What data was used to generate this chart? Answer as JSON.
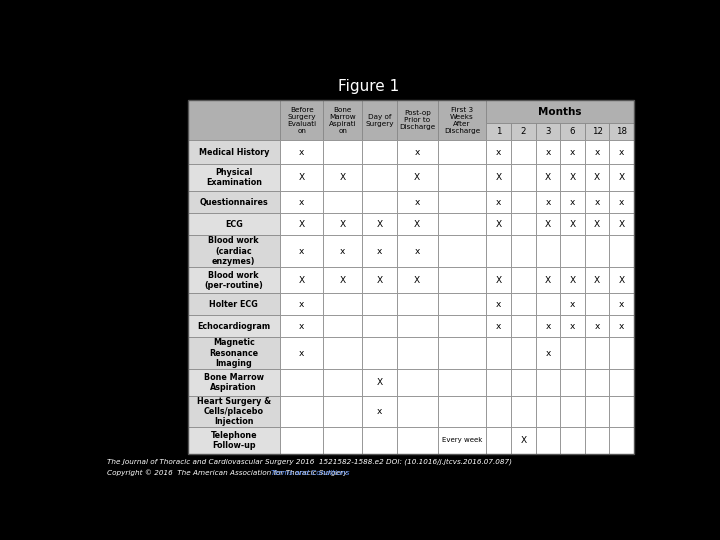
{
  "title": "Figure 1",
  "background_color": "#000000",
  "header_bg": "#b0b0b0",
  "subheader_bg": "#c8c8c8",
  "row_label_bg_even": "#d8d8d8",
  "row_label_bg_odd": "#e0e0e0",
  "cell_color": "#ffffff",
  "footer_line1": "The Journal of Thoracic and Cardiovascular Surgery 2016  1521582-1588.e2 DOI: (10.1016/j.jtcvs.2016.07.087)",
  "footer_line2": "Copyright © 2016  The American Association for Thoracic Surgery ",
  "footer_link": "Terms and Conditions",
  "months_header": "Months",
  "col_headers": [
    "Before\nSurgery\nEvaluati\non",
    "Bone\nMarrow\nAspirati\non",
    "Day of\nSurgery",
    "Post-op\nPrior to\nDischarge",
    "First 3\nWeeks\nAfter\nDischarge"
  ],
  "month_nums": [
    "1",
    "2",
    "3",
    "6",
    "12",
    "18"
  ],
  "row_labels": [
    "Medical History",
    "Physical\nExamination",
    "Questionnaires",
    "ECG",
    "Blood work\n(cardiac\nenzymes)",
    "Blood work\n(per-routine)",
    "Holter ECG",
    "Echocardiogram",
    "Magnetic\nResonance\nImaging",
    "Bone Marrow\nAspiration",
    "Heart Surgery &\nCells/placebo\nInjection",
    "Telephone\nFollow-up"
  ],
  "table_data": [
    [
      "x",
      "",
      "",
      "x",
      "",
      "x",
      "",
      "x",
      "x",
      "x",
      "x"
    ],
    [
      "X",
      "X",
      "",
      "X",
      "",
      "X",
      "",
      "X",
      "X",
      "X",
      "X"
    ],
    [
      "x",
      "",
      "",
      "x",
      "",
      "x",
      "",
      "x",
      "x",
      "x",
      "x"
    ],
    [
      "X",
      "X",
      "X",
      "X",
      "",
      "X",
      "",
      "X",
      "X",
      "X",
      "X"
    ],
    [
      "x",
      "x",
      "x",
      "x",
      "",
      "",
      "",
      "",
      "",
      "",
      ""
    ],
    [
      "X",
      "X",
      "X",
      "X",
      "",
      "X",
      "",
      "X",
      "X",
      "X",
      "X"
    ],
    [
      "x",
      "",
      "",
      "",
      "",
      "x",
      "",
      "",
      "x",
      "",
      "x"
    ],
    [
      "x",
      "",
      "",
      "",
      "",
      "x",
      "",
      "x",
      "x",
      "x",
      "x"
    ],
    [
      "x",
      "",
      "",
      "",
      "",
      "",
      "",
      "x",
      "",
      "",
      ""
    ],
    [
      "",
      "",
      "X",
      "",
      "",
      "",
      "",
      "",
      "",
      "",
      ""
    ],
    [
      "",
      "",
      "x",
      "",
      "",
      "",
      "",
      "",
      "",
      "",
      ""
    ],
    [
      "",
      "",
      "",
      "",
      "Every week",
      "",
      "X",
      "",
      "",
      "",
      ""
    ]
  ]
}
